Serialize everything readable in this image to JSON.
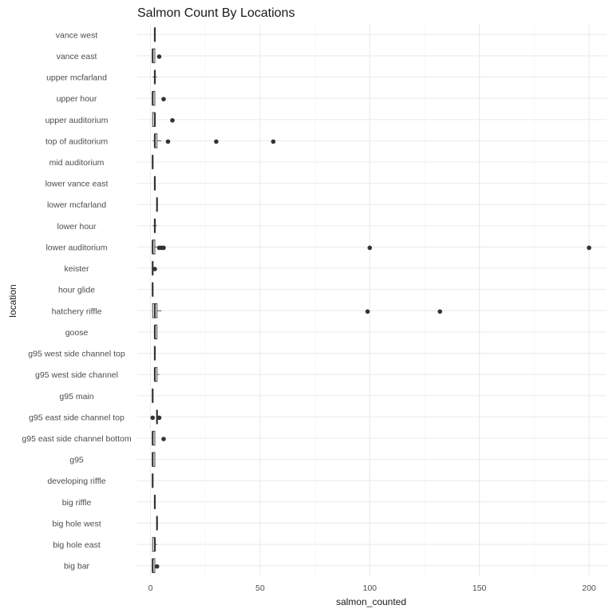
{
  "chart_data": {
    "type": "boxplot",
    "orientation": "horizontal",
    "title": "Salmon Count By Locations",
    "xlabel": "salmon_counted",
    "ylabel": "location",
    "xlim": [
      -6,
      208
    ],
    "xticks": [
      0,
      50,
      100,
      150,
      200
    ],
    "grid": true,
    "categories": [
      "big bar",
      "big hole east",
      "big hole west",
      "big riffle",
      "developing riffle",
      "g95",
      "g95 east side channel bottom",
      "g95 east side channel top",
      "g95 main",
      "g95 west side channel",
      "g95 west side channel top",
      "goose",
      "hatchery riffle",
      "hour glide",
      "keister",
      "lower auditorium",
      "lower hour",
      "lower mcfarland",
      "lower vance east",
      "mid auditorium",
      "top of auditorium",
      "upper auditorium",
      "upper hour",
      "upper mcfarland",
      "vance east",
      "vance west"
    ],
    "boxes": [
      {
        "location": "big bar",
        "min": 1,
        "q1": 1,
        "median": 1,
        "q3": 2,
        "max": 2,
        "outliers": [
          3
        ]
      },
      {
        "location": "big hole east",
        "min": 1,
        "q1": 1,
        "median": 2,
        "q3": 2,
        "max": 3,
        "outliers": []
      },
      {
        "location": "big hole west",
        "min": 3,
        "q1": 3,
        "median": 3,
        "q3": 3,
        "max": 3,
        "outliers": []
      },
      {
        "location": "big riffle",
        "min": 2,
        "q1": 2,
        "median": 2,
        "q3": 2,
        "max": 2,
        "outliers": []
      },
      {
        "location": "developing riffle",
        "min": 1,
        "q1": 1,
        "median": 1,
        "q3": 1,
        "max": 1,
        "outliers": []
      },
      {
        "location": "g95",
        "min": 1,
        "q1": 1,
        "median": 1,
        "q3": 2,
        "max": 2,
        "outliers": []
      },
      {
        "location": "g95 east side channel bottom",
        "min": 1,
        "q1": 1,
        "median": 1,
        "q3": 2,
        "max": 2,
        "outliers": [
          6
        ]
      },
      {
        "location": "g95 east side channel top",
        "min": 3,
        "q1": 3,
        "median": 3,
        "q3": 3,
        "max": 3,
        "outliers": [
          1,
          4
        ]
      },
      {
        "location": "g95 main",
        "min": 1,
        "q1": 1,
        "median": 1,
        "q3": 1,
        "max": 1,
        "outliers": []
      },
      {
        "location": "g95 west side channel",
        "min": 2,
        "q1": 2,
        "median": 2,
        "q3": 3,
        "max": 4,
        "outliers": []
      },
      {
        "location": "g95 west side channel top",
        "min": 2,
        "q1": 2,
        "median": 2,
        "q3": 2,
        "max": 2,
        "outliers": []
      },
      {
        "location": "goose",
        "min": 2,
        "q1": 2,
        "median": 2,
        "q3": 3,
        "max": 3,
        "outliers": []
      },
      {
        "location": "hatchery riffle",
        "min": 1,
        "q1": 1,
        "median": 2,
        "q3": 3,
        "max": 5,
        "outliers": [
          99,
          132
        ]
      },
      {
        "location": "hour glide",
        "min": 1,
        "q1": 1,
        "median": 1,
        "q3": 1,
        "max": 1,
        "outliers": []
      },
      {
        "location": "keister",
        "min": 1,
        "q1": 1,
        "median": 1,
        "q3": 1,
        "max": 1,
        "outliers": [
          2
        ]
      },
      {
        "location": "lower auditorium",
        "min": 1,
        "q1": 1,
        "median": 1,
        "q3": 2,
        "max": 3,
        "outliers": [
          4,
          5,
          6,
          100,
          200
        ]
      },
      {
        "location": "lower hour",
        "min": 1,
        "q1": 2,
        "median": 2,
        "q3": 2,
        "max": 3,
        "outliers": []
      },
      {
        "location": "lower mcfarland",
        "min": 3,
        "q1": 3,
        "median": 3,
        "q3": 3,
        "max": 3,
        "outliers": []
      },
      {
        "location": "lower vance east",
        "min": 2,
        "q1": 2,
        "median": 2,
        "q3": 2,
        "max": 2,
        "outliers": []
      },
      {
        "location": "mid auditorium",
        "min": 1,
        "q1": 1,
        "median": 1,
        "q3": 1,
        "max": 1,
        "outliers": []
      },
      {
        "location": "top of auditorium",
        "min": 1,
        "q1": 2,
        "median": 2,
        "q3": 3,
        "max": 5,
        "outliers": [
          8,
          30,
          56
        ]
      },
      {
        "location": "upper auditorium",
        "min": 1,
        "q1": 1,
        "median": 2,
        "q3": 2,
        "max": 2,
        "outliers": [
          10
        ]
      },
      {
        "location": "upper hour",
        "min": 1,
        "q1": 1,
        "median": 1,
        "q3": 2,
        "max": 2,
        "outliers": [
          6
        ]
      },
      {
        "location": "upper mcfarland",
        "min": 1,
        "q1": 2,
        "median": 2,
        "q3": 2,
        "max": 3,
        "outliers": []
      },
      {
        "location": "vance east",
        "min": 1,
        "q1": 1,
        "median": 1,
        "q3": 2,
        "max": 2,
        "outliers": [
          4
        ]
      },
      {
        "location": "vance west",
        "min": 2,
        "q1": 2,
        "median": 2,
        "q3": 2,
        "max": 2,
        "outliers": []
      }
    ],
    "colors": {
      "grid_major": "#ebebeb",
      "grid_minor": "#f5f5f5",
      "box_line": "#333333",
      "box_fill": "#ffffff",
      "outlier": "#333333",
      "text": "#1a1a1a",
      "tick_text": "#4d4d4d",
      "background": "#ffffff"
    }
  }
}
